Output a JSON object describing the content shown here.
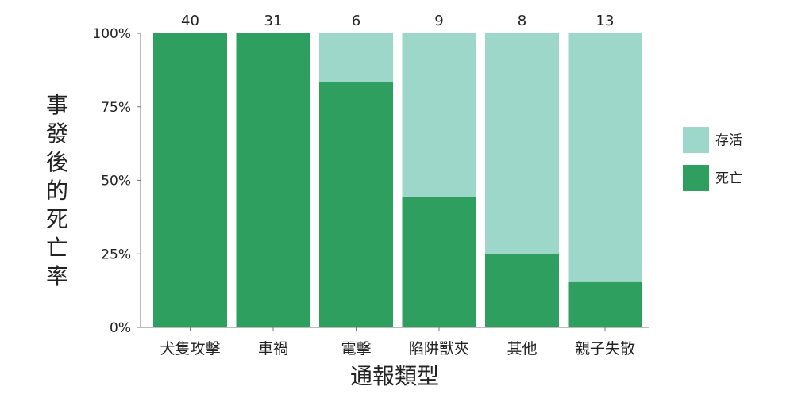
{
  "chart_data": {
    "type": "bar",
    "stacked": true,
    "normalized": true,
    "categories": [
      "犬隻攻擊",
      "車禍",
      "電擊",
      "陷阱獸夾",
      "其他",
      "親子失散"
    ],
    "counts": [
      "40",
      "31",
      "6",
      "9",
      "8",
      "13"
    ],
    "series": [
      {
        "name": "死亡",
        "values": [
          100,
          100,
          83.3,
          44.4,
          25.0,
          15.4
        ],
        "color": "#2e9f5e"
      },
      {
        "name": "存活",
        "values": [
          0,
          0,
          16.7,
          55.6,
          75.0,
          84.6
        ],
        "color": "#9dd7ca"
      }
    ],
    "ylim": [
      0,
      100
    ],
    "yticks": [
      "0%",
      "25%",
      "50%",
      "75%",
      "100%"
    ],
    "xlabel": "通報類型",
    "ylabel": "事發後的死亡率",
    "legend": {
      "position": "right",
      "items": [
        {
          "label": "存活",
          "color": "#9dd7ca"
        },
        {
          "label": "死亡",
          "color": "#2e9f5e"
        }
      ]
    },
    "grid": false
  }
}
